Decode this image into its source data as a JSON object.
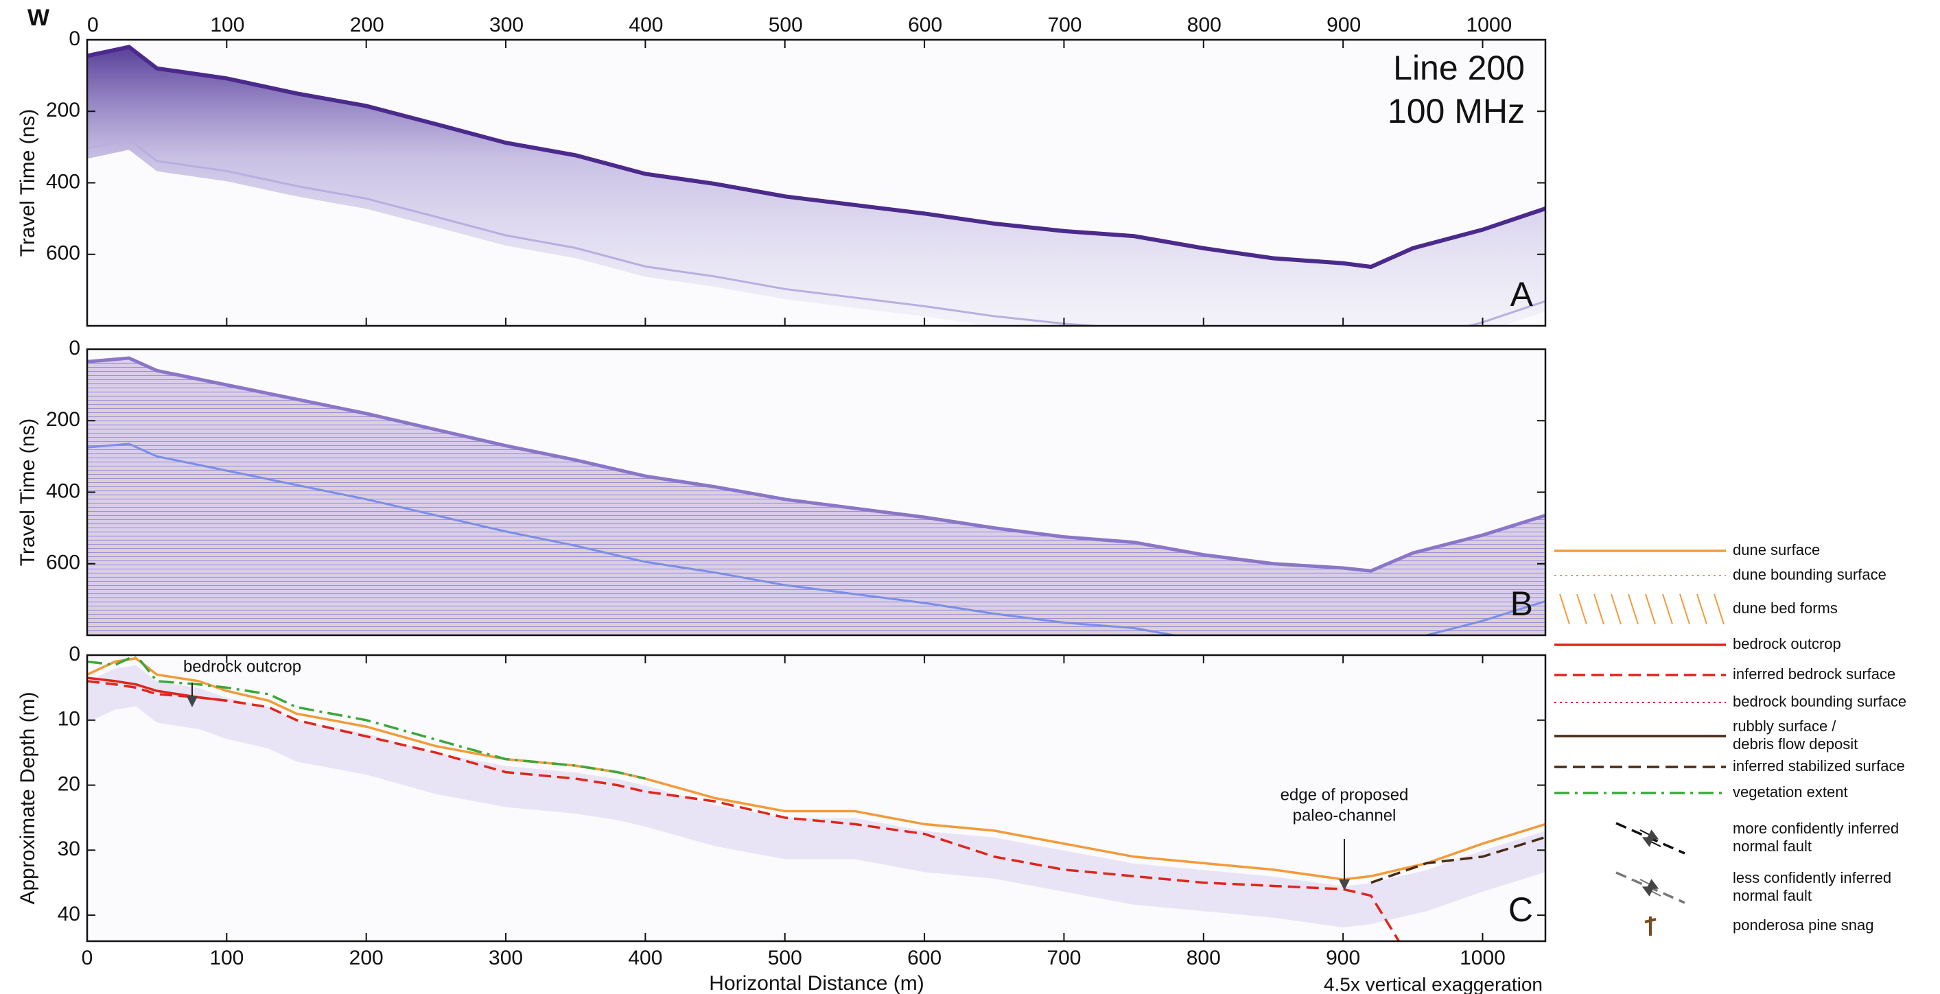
{
  "figure": {
    "marker": "W",
    "x_label": "Horizontal Distance (m)",
    "note": "4.5x vertical exaggeration"
  },
  "chart_data": [
    {
      "type": "radargram",
      "title": "Line 200",
      "subtitle": "100 MHz",
      "panel": "A",
      "y_label": "Travel Time (ns)",
      "x": [
        0,
        30,
        50,
        100,
        150,
        200,
        250,
        300,
        350,
        400,
        450,
        500,
        550,
        600,
        650,
        700,
        750,
        800,
        850,
        900,
        920,
        950,
        1000,
        1045
      ],
      "series": [
        {
          "color": "#4b2a8c",
          "values": [
            45,
            20,
            80,
            108,
            150,
            185,
            236,
            288,
            323,
            375,
            403,
            438,
            462,
            486,
            514,
            535,
            549,
            583,
            611,
            625,
            635,
            583,
            531,
            472
          ]
        }
      ],
      "xlim": [
        0,
        1045
      ],
      "xticks": [
        0,
        100,
        200,
        300,
        400,
        500,
        600,
        700,
        800,
        900,
        1000
      ],
      "ylim": [
        0,
        800
      ],
      "yticks": [
        0,
        200,
        400,
        600
      ]
    },
    {
      "type": "radargram-processed",
      "panel": "B",
      "y_label": "Travel Time (ns)",
      "x": [
        0,
        30,
        50,
        100,
        150,
        200,
        250,
        300,
        350,
        400,
        450,
        500,
        550,
        600,
        650,
        700,
        750,
        800,
        850,
        900,
        920,
        950,
        1000,
        1045
      ],
      "series": [
        {
          "color": "#8a76c8",
          "values": [
            35,
            25,
            60,
            100,
            140,
            180,
            225,
            270,
            310,
            355,
            385,
            420,
            445,
            470,
            500,
            525,
            540,
            575,
            600,
            612,
            620,
            570,
            520,
            465
          ]
        }
      ],
      "xlim": [
        0,
        1045
      ],
      "ylim": [
        0,
        800
      ],
      "yticks": [
        0,
        200,
        400,
        600
      ]
    },
    {
      "type": "interpretation",
      "panel": "C",
      "y_label": "Approximate Depth (m)",
      "x": [
        0,
        20,
        35,
        50,
        80,
        100,
        130,
        150,
        200,
        250,
        300,
        350,
        380,
        400,
        450,
        500,
        550,
        600,
        650,
        700,
        750,
        800,
        850,
        900,
        920,
        940,
        960,
        1000,
        1045
      ],
      "series": [
        {
          "color": "#f39a3a",
          "style": "solid",
          "values": [
            3,
            1,
            0.5,
            3,
            4,
            5.5,
            7,
            9,
            11,
            14,
            16,
            17,
            18,
            19,
            22,
            24,
            24,
            26,
            27,
            29,
            31,
            32,
            33,
            34.5,
            34,
            33,
            32,
            29,
            26
          ]
        },
        {
          "color": "#e0251b",
          "style": "solid",
          "values": [
            3.5,
            4,
            4.5,
            5.5,
            6.5,
            7,
            null,
            null,
            null,
            null,
            null,
            null,
            null,
            null,
            null,
            null,
            null,
            null,
            null,
            null,
            null,
            null,
            null,
            null,
            null,
            null,
            null,
            null,
            null
          ]
        },
        {
          "color": "#e0251b",
          "style": "dashed",
          "values": [
            4,
            4.5,
            5,
            6,
            6.5,
            7,
            8,
            10,
            12.5,
            15,
            18,
            19,
            20,
            21,
            22.5,
            25,
            26,
            27.5,
            31,
            33,
            34,
            35,
            35.5,
            36,
            37,
            44,
            null,
            null,
            null
          ]
        },
        {
          "color": "#4a2a14",
          "style": "dashed",
          "values": [
            null,
            null,
            null,
            null,
            null,
            null,
            null,
            null,
            null,
            null,
            null,
            null,
            null,
            null,
            null,
            null,
            null,
            null,
            null,
            null,
            null,
            null,
            null,
            null,
            35,
            33.5,
            32,
            31,
            28
          ]
        },
        {
          "color": "#3aa83a",
          "style": "dashdot",
          "values": [
            1,
            1.5,
            0,
            4,
            4.5,
            5,
            6,
            8,
            10,
            13,
            16,
            17,
            18,
            19,
            null,
            null,
            null,
            null,
            null,
            null,
            null,
            null,
            null,
            null,
            null,
            null,
            null,
            null,
            null
          ]
        }
      ],
      "annotations": [
        {
          "text": [
            "bedrock outcrop"
          ]
        },
        {
          "text": [
            "edge of proposed",
            "paleo-channel"
          ]
        }
      ],
      "legend": [
        {
          "label": [
            "dune surface"
          ],
          "style": "solid",
          "color": "#f39a3a"
        },
        {
          "label": [
            "dune bounding surface"
          ],
          "style": "dotted",
          "color": "#f39a3a"
        },
        {
          "label": [
            "dune bed forms"
          ],
          "style": "hatch",
          "color": "#f39a3a"
        },
        {
          "label": [
            "bedrock outcrop"
          ],
          "style": "solid",
          "color": "#e0251b"
        },
        {
          "label": [
            "inferred bedrock surface"
          ],
          "style": "dashed",
          "color": "#e0251b"
        },
        {
          "label": [
            "bedrock bounding surface"
          ],
          "style": "dotted",
          "color": "#e0251b"
        },
        {
          "label": [
            "rubbly surface /",
            "debris flow deposit"
          ],
          "style": "solid",
          "color": "#4a2a14"
        },
        {
          "label": [
            "inferred stabilized surface"
          ],
          "style": "dashed",
          "color": "#4a2a14"
        },
        {
          "label": [
            "vegetation extent"
          ],
          "style": "dashdot",
          "color": "#3aa83a"
        },
        {
          "label": [
            "more confidently inferred",
            "normal fault"
          ],
          "style": "fault",
          "color": "#111111"
        },
        {
          "label": [
            "less confidently inferred",
            "normal fault"
          ],
          "style": "fault",
          "color": "#777777"
        },
        {
          "label": [
            "ponderosa pine snag"
          ],
          "style": "snag",
          "color": "#7a4a20"
        }
      ],
      "xlim": [
        0,
        1045
      ],
      "xticks": [
        0,
        100,
        200,
        300,
        400,
        500,
        600,
        700,
        800,
        900,
        1000
      ],
      "ylim": [
        0,
        44
      ],
      "yticks": [
        0,
        10,
        20,
        30,
        40
      ]
    }
  ]
}
